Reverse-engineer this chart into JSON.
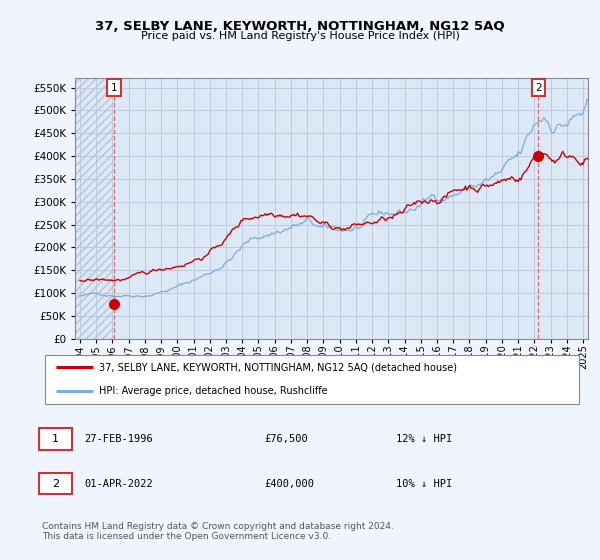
{
  "title_line1": "37, SELBY LANE, KEYWORTH, NOTTINGHAM, NG12 5AQ",
  "title_line2": "Price paid vs. HM Land Registry's House Price Index (HPI)",
  "background_color": "#f0f4ff",
  "plot_bg_color": "#dce8f5",
  "hatch_color": "#b8c4d4",
  "grid_color": "#b8c8dc",
  "ylim": [
    0,
    570000
  ],
  "yticks": [
    0,
    50000,
    100000,
    150000,
    200000,
    250000,
    300000,
    350000,
    400000,
    450000,
    500000,
    550000
  ],
  "ytick_labels": [
    "£0",
    "£50K",
    "£100K",
    "£150K",
    "£200K",
    "£250K",
    "£300K",
    "£350K",
    "£400K",
    "£450K",
    "£500K",
    "£550K"
  ],
  "sale1_date": 1996.12,
  "sale1_price": 76500,
  "sale2_date": 2022.25,
  "sale2_price": 400000,
  "legend_line1": "37, SELBY LANE, KEYWORTH, NOTTINGHAM, NG12 5AQ (detached house)",
  "legend_line2": "HPI: Average price, detached house, Rushcliffe",
  "table_row1": [
    "1",
    "27-FEB-1996",
    "£76,500",
    "12% ↓ HPI"
  ],
  "table_row2": [
    "2",
    "01-APR-2022",
    "£400,000",
    "10% ↓ HPI"
  ],
  "footer": "Contains HM Land Registry data © Crown copyright and database right 2024.\nThis data is licensed under the Open Government Licence v3.0.",
  "line_color_red": "#cc0000",
  "line_color_blue": "#7aade0",
  "dashed_line_color": "#e06060",
  "marker_color": "#cc0000",
  "box_border_color": "#cc3333",
  "xtick_years": [
    1994,
    1995,
    1996,
    1997,
    1998,
    1999,
    2000,
    2001,
    2002,
    2003,
    2004,
    2005,
    2006,
    2007,
    2008,
    2009,
    2010,
    2011,
    2012,
    2013,
    2014,
    2015,
    2016,
    2017,
    2018,
    2019,
    2020,
    2021,
    2022,
    2023,
    2024,
    2025
  ],
  "xlim": [
    1993.7,
    2025.3
  ]
}
